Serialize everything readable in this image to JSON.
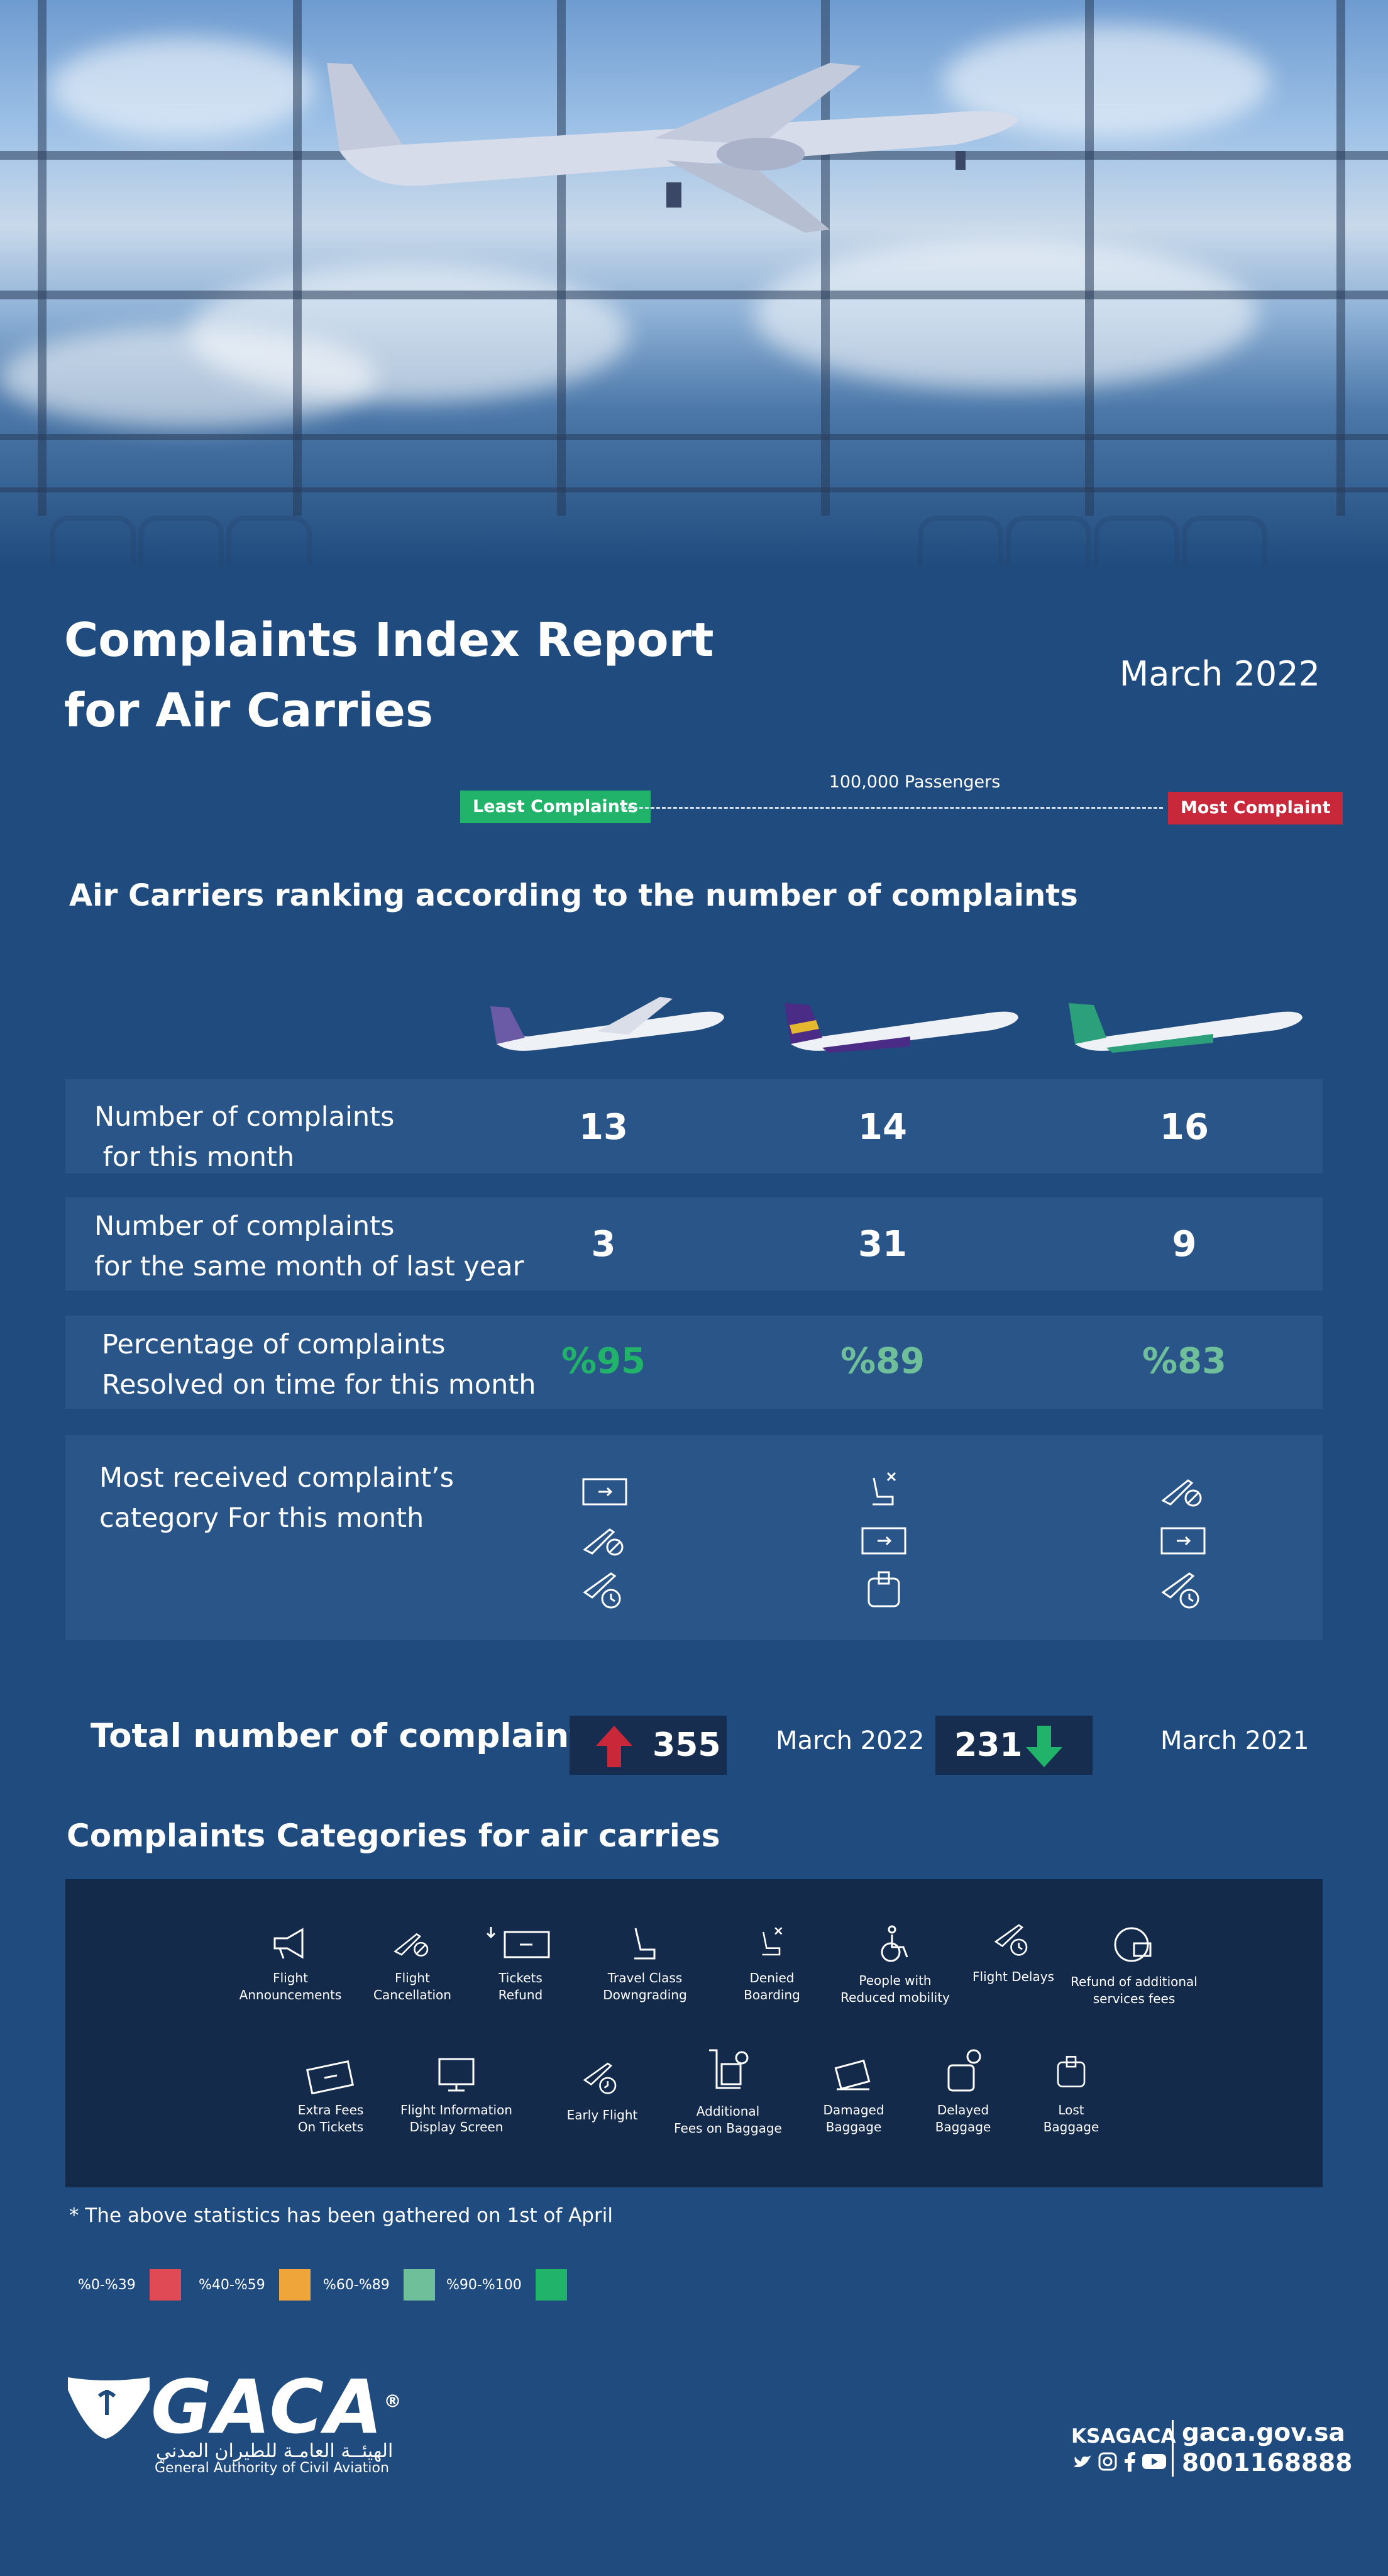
{
  "header": {
    "title_line1": "Complaints Index Report",
    "title_line2": "for Air Carries",
    "date": "March 2022"
  },
  "scale": {
    "least_label": "Least Complaints",
    "most_label": "Most Complaint",
    "passengers_label": "100,000 Passengers",
    "least_color": "#21b36a",
    "most_color": "#c8283a"
  },
  "ranking": {
    "heading": "Air Carriers ranking according to the number of complaints",
    "rows": [
      {
        "label_line1": "Number of complaints",
        "label_line2": " for this month",
        "values": [
          "13",
          "14",
          "16"
        ]
      },
      {
        "label_line1": "Number of complaints",
        "label_line2": "for the same month of last year",
        "values": [
          "3",
          "31",
          "9"
        ]
      },
      {
        "label_line1": "Percentage of complaints",
        "label_line2": "Resolved on time for this month",
        "values": [
          "%95",
          "%89",
          "%83"
        ]
      },
      {
        "label_line1": "Most received complaint’s",
        "label_line2": "category For this month"
      }
    ],
    "carrier_icons": [
      [
        "ticket-icon",
        "flight-cancellation-icon",
        "flight-delay-icon"
      ],
      [
        "denied-boarding-icon",
        "ticket-icon",
        "lost-baggage-icon"
      ],
      [
        "flight-cancellation-icon",
        "ticket-icon",
        "flight-delay-icon"
      ]
    ]
  },
  "totals": {
    "label": "Total number of complaints",
    "current_value": "355",
    "current_period": "March 2022",
    "previous_value": "231",
    "previous_period": "March 2021"
  },
  "categories": {
    "heading": "Complaints Categories for air carries",
    "row1": [
      {
        "icon": "megaphone-icon",
        "line1": "Flight",
        "line2": "Announcements"
      },
      {
        "icon": "flight-cancellation-icon",
        "line1": "Flight",
        "line2": "Cancellation"
      },
      {
        "icon": "ticket-refund-icon",
        "line1": "Tickets",
        "line2": "Refund"
      },
      {
        "icon": "seat-icon",
        "line1": "Travel Class",
        "line2": "Downgrading"
      },
      {
        "icon": "denied-boarding-icon",
        "line1": "Denied",
        "line2": "Boarding"
      },
      {
        "icon": "wheelchair-icon",
        "line1": "People with",
        "line2": "Reduced mobility"
      },
      {
        "icon": "flight-delay-icon",
        "line1": "Flight Delays",
        "line2": ""
      },
      {
        "icon": "refund-services-icon",
        "line1": "Refund of additional",
        "line2": "services fees"
      }
    ],
    "row2": [
      {
        "icon": "ticket-icon",
        "line1": "Extra Fees",
        "line2": "On Tickets"
      },
      {
        "icon": "display-screen-icon",
        "line1": "Flight Information",
        "line2": "Display Screen"
      },
      {
        "icon": "early-flight-icon",
        "line1": "Early Flight",
        "line2": ""
      },
      {
        "icon": "baggage-fees-icon",
        "line1": "Additional",
        "line2": "Fees on Baggage"
      },
      {
        "icon": "damaged-baggage-icon",
        "line1": "Damaged",
        "line2": "Baggage"
      },
      {
        "icon": "delayed-baggage-icon",
        "line1": "Delayed",
        "line2": "Baggage"
      },
      {
        "icon": "lost-baggage-icon",
        "line1": "Lost",
        "line2": "Baggage"
      }
    ]
  },
  "footnote": "* The above statistics has been gathered on 1st of April",
  "legend": [
    {
      "label": "%0-%39",
      "color": "#e04a55"
    },
    {
      "label": "%40-%59",
      "color": "#f0a53a"
    },
    {
      "label": "%60-%89",
      "color": "#6ebf9a"
    },
    {
      "label": "%90-%100",
      "color": "#21b36a"
    }
  ],
  "footer": {
    "logo": "GACA",
    "logo_mark": "®",
    "arabic_name": "الهيئــة العامـة للطيران المدني",
    "english_name": "General Authority of Civil Aviation",
    "social_handle": "KSAGACA",
    "website": "gaca.gov.sa",
    "phone": "8001168888"
  }
}
